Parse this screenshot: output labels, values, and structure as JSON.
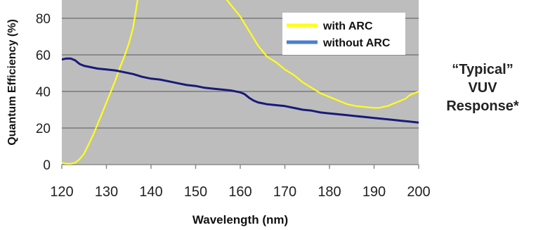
{
  "annotation": {
    "lines": [
      "“Typical”",
      "VUV",
      "Response*"
    ]
  },
  "chart_data": {
    "type": "line",
    "title": "",
    "xlabel": "Wavelength (nm)",
    "ylabel": "Quantum Efficiency (%)",
    "xlim": [
      120,
      200
    ],
    "ylim": [
      0,
      90
    ],
    "xticks": [
      "120",
      "130",
      "140",
      "150",
      "160",
      "170",
      "180",
      "190",
      "200"
    ],
    "yticks": [
      "0",
      "20",
      "40",
      "60",
      "80"
    ],
    "grid": true,
    "legend_position": "top-right",
    "series": [
      {
        "name": "with ARC",
        "color": "#ffff1a",
        "x": [
          120,
          121,
          122,
          123,
          124,
          125,
          126,
          127,
          128,
          129,
          130,
          131,
          132,
          133,
          134,
          135,
          136,
          137,
          157,
          158,
          159,
          160,
          161,
          162,
          163,
          164,
          165,
          166,
          168,
          170,
          172,
          174,
          176,
          178,
          180,
          182,
          184,
          186,
          188,
          190,
          191,
          192,
          193,
          194,
          195,
          196,
          197,
          198,
          199,
          200
        ],
        "y": [
          1,
          0.5,
          0.5,
          1,
          3,
          6,
          11,
          16,
          22,
          28,
          34,
          40,
          46,
          53,
          59,
          66,
          75,
          90,
          90,
          87,
          84,
          81,
          77,
          73,
          69,
          65,
          62,
          59,
          56,
          52,
          49,
          45,
          42,
          39,
          37,
          35,
          33,
          32,
          31.5,
          31,
          31,
          31.5,
          32,
          33,
          34,
          35,
          36,
          38,
          39,
          40
        ]
      },
      {
        "name": "without ARC",
        "color": "#1a1a7a",
        "x": [
          120,
          121,
          122,
          123,
          124,
          125,
          126,
          128,
          130,
          132,
          134,
          136,
          138,
          140,
          142,
          144,
          146,
          148,
          150,
          152,
          154,
          156,
          158,
          160,
          161,
          162,
          163,
          164,
          165,
          166,
          168,
          170,
          172,
          174,
          176,
          178,
          180,
          182,
          184,
          186,
          188,
          190,
          192,
          194,
          196,
          198,
          200
        ],
        "y": [
          57.5,
          58,
          58,
          57,
          55,
          54,
          53.5,
          52.5,
          52,
          51.5,
          50.5,
          49.5,
          48,
          47,
          46.5,
          45.5,
          44.5,
          43.5,
          43,
          42,
          41.5,
          41,
          40.5,
          39.5,
          38.5,
          36.5,
          35,
          34,
          33.5,
          33,
          32.5,
          32,
          31,
          30,
          29.5,
          28.5,
          28,
          27.5,
          27,
          26.5,
          26,
          25.5,
          25,
          24.5,
          24,
          23.5,
          23
        ]
      }
    ]
  }
}
